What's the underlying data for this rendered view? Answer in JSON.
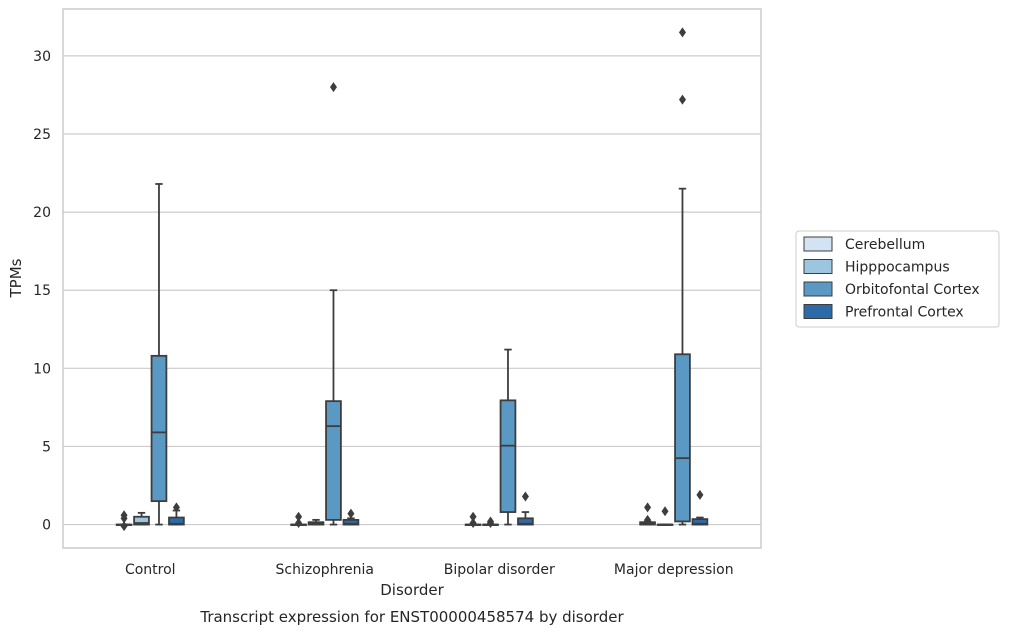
{
  "chart_data": {
    "type": "box",
    "title": "",
    "caption": "Transcript expression for ENST00000458574 by disorder",
    "xlabel": "Disorder",
    "ylabel": "TPMs",
    "ylim": [
      -1.5,
      33
    ],
    "yticks": [
      0,
      5,
      10,
      15,
      20,
      25,
      30
    ],
    "ytick_labels": [
      "0",
      "5",
      "10",
      "15",
      "20",
      "25",
      "30"
    ],
    "grid": "horizontal",
    "legend_position": "right",
    "categories": [
      "Control",
      "Schizophrenia",
      "Bipolar disorder",
      "Major depression"
    ],
    "series": [
      {
        "name": "Cerebellum",
        "color": "#d4e3f1",
        "boxes": [
          {
            "whislo": 0,
            "q1": 0,
            "med": 0,
            "q3": 0,
            "whishi": 0,
            "fliers": [
              0.4,
              0.6,
              -0.1
            ]
          },
          {
            "whislo": 0,
            "q1": 0,
            "med": 0,
            "q3": 0,
            "whishi": 0,
            "fliers": [
              0.1,
              0.5
            ]
          },
          {
            "whislo": 0,
            "q1": 0,
            "med": 0,
            "q3": 0,
            "whishi": 0,
            "fliers": [
              0.1,
              0.5
            ]
          },
          {
            "whislo": 0,
            "q1": 0,
            "med": 0.05,
            "q3": 0.15,
            "whishi": 0.2,
            "fliers": [
              0.3,
              1.1
            ]
          }
        ]
      },
      {
        "name": "Hipppocampus",
        "color": "#9cc6e0",
        "boxes": [
          {
            "whislo": 0,
            "q1": 0,
            "med": 0.1,
            "q3": 0.5,
            "whishi": 0.75,
            "fliers": []
          },
          {
            "whislo": 0,
            "q1": 0,
            "med": 0.05,
            "q3": 0.15,
            "whishi": 0.3,
            "fliers": []
          },
          {
            "whislo": 0,
            "q1": 0,
            "med": 0,
            "q3": 0,
            "whishi": 0,
            "fliers": [
              0.1,
              0.2
            ]
          },
          {
            "whislo": 0,
            "q1": 0,
            "med": 0,
            "q3": 0,
            "whishi": 0,
            "fliers": [
              0.85
            ]
          }
        ]
      },
      {
        "name": "Orbitofontal Cortex",
        "color": "#5a99c3",
        "boxes": [
          {
            "whislo": 0,
            "q1": 1.5,
            "med": 5.9,
            "q3": 10.8,
            "whishi": 21.8,
            "fliers": []
          },
          {
            "whislo": 0,
            "q1": 0.3,
            "med": 6.3,
            "q3": 7.9,
            "whishi": 15,
            "fliers": [
              28
            ]
          },
          {
            "whislo": 0,
            "q1": 0.8,
            "med": 5.05,
            "q3": 7.95,
            "whishi": 11.2,
            "fliers": []
          },
          {
            "whislo": 0,
            "q1": 0.2,
            "med": 4.25,
            "q3": 10.9,
            "whishi": 21.5,
            "fliers": [
              27.2,
              31.5
            ]
          }
        ]
      },
      {
        "name": "Prefrontal Cortex",
        "color": "#2d6ba8",
        "boxes": [
          {
            "whislo": 0,
            "q1": 0,
            "med": 0.05,
            "q3": 0.45,
            "whishi": 0.9,
            "fliers": [
              1.1
            ]
          },
          {
            "whislo": 0,
            "q1": 0,
            "med": 0.05,
            "q3": 0.3,
            "whishi": 0.4,
            "fliers": [
              0.7
            ]
          },
          {
            "whislo": 0,
            "q1": 0,
            "med": 0.05,
            "q3": 0.4,
            "whishi": 0.8,
            "fliers": [
              1.8
            ]
          },
          {
            "whislo": 0,
            "q1": 0,
            "med": 0.05,
            "q3": 0.35,
            "whishi": 0.45,
            "fliers": [
              1.9
            ]
          }
        ]
      }
    ]
  }
}
